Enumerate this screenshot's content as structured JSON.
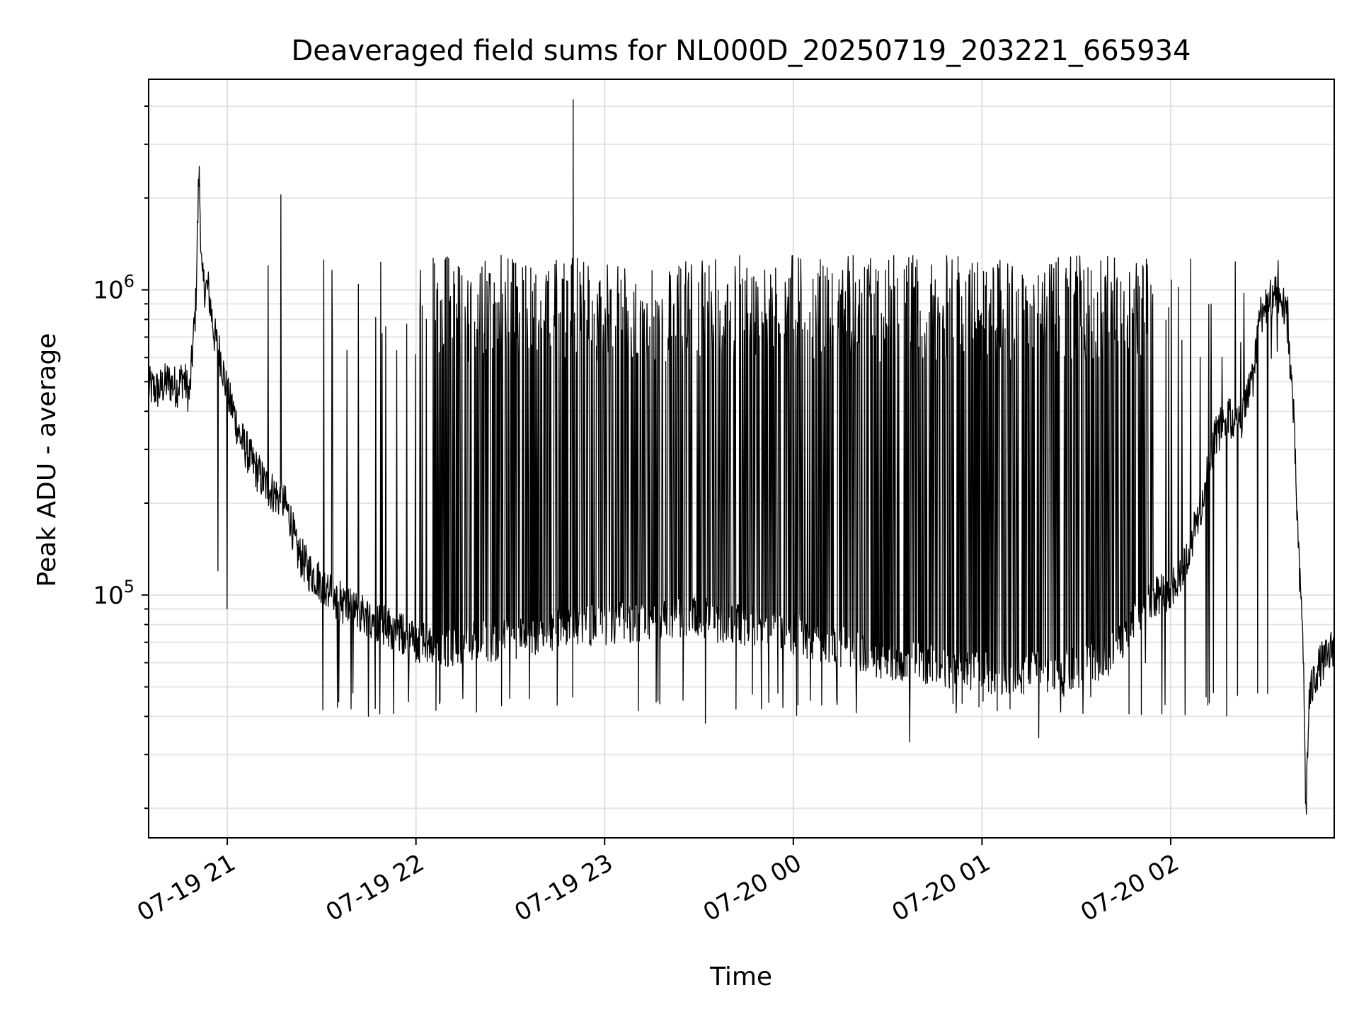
{
  "chart_data": {
    "type": "line",
    "title": "Deaveraged field sums for NL000D_20250719_203221_665934",
    "xlabel": "Time",
    "ylabel": "Peak ADU - average",
    "y_scale": "log",
    "ylim": [
      16000,
      4900000
    ],
    "xlim": [
      "2025-07-19 20:35",
      "2025-07-20 02:52"
    ],
    "x_ticks": [
      {
        "label": "07-19 21",
        "time": "2025-07-19 21:00"
      },
      {
        "label": "07-19 22",
        "time": "2025-07-19 22:00"
      },
      {
        "label": "07-19 23",
        "time": "2025-07-19 23:00"
      },
      {
        "label": "07-20 00",
        "time": "2025-07-20 00:00"
      },
      {
        "label": "07-20 01",
        "time": "2025-07-20 01:00"
      },
      {
        "label": "07-20 02",
        "time": "2025-07-20 02:00"
      }
    ],
    "y_ticks": [
      {
        "value": 100000,
        "base": "10",
        "exp": "5"
      },
      {
        "value": 1000000,
        "base": "10",
        "exp": "6"
      }
    ],
    "grid": true,
    "line_color": "#000000",
    "series": [
      {
        "points": [
          [
            "2025-07-19 20:35",
            480000
          ],
          [
            "2025-07-19 20:38",
            470000
          ],
          [
            "2025-07-19 20:41",
            500000
          ],
          [
            "2025-07-19 20:44",
            480000
          ],
          [
            "2025-07-19 20:46",
            520000
          ],
          [
            "2025-07-19 20:48",
            450000
          ],
          [
            "2025-07-19 20:50",
            900000
          ],
          [
            "2025-07-19 20:51",
            2500000
          ],
          [
            "2025-07-19 20:52",
            1050000
          ],
          [
            "2025-07-19 20:54",
            1000000
          ],
          [
            "2025-07-19 20:56",
            700000
          ],
          [
            "2025-07-19 20:58",
            600000
          ],
          [
            "2025-07-19 21:00",
            450000
          ],
          [
            "2025-07-19 21:02",
            400000
          ],
          [
            "2025-07-19 21:04",
            330000
          ],
          [
            "2025-07-19 21:06",
            300000
          ],
          [
            "2025-07-19 21:08",
            270000
          ],
          [
            "2025-07-19 21:10",
            250000
          ],
          [
            "2025-07-19 21:12",
            230000
          ],
          [
            "2025-07-19 21:14",
            220000
          ],
          [
            "2025-07-19 21:16",
            210000
          ],
          [
            "2025-07-19 21:18",
            200000
          ],
          [
            "2025-07-19 21:20",
            180000
          ],
          [
            "2025-07-19 21:22",
            140000
          ],
          [
            "2025-07-19 21:24",
            130000
          ],
          [
            "2025-07-19 21:26",
            120000
          ],
          [
            "2025-07-19 21:28",
            115000
          ],
          [
            "2025-07-19 21:30",
            110000
          ],
          [
            "2025-07-19 21:33",
            100000
          ],
          [
            "2025-07-19 21:36",
            95000
          ],
          [
            "2025-07-19 21:40",
            90000
          ],
          [
            "2025-07-19 21:45",
            85000
          ],
          [
            "2025-07-19 21:50",
            80000
          ],
          [
            "2025-07-19 21:55",
            75000
          ],
          [
            "2025-07-19 22:00",
            70000
          ],
          [
            "2025-07-19 22:10",
            68000
          ],
          [
            "2025-07-19 22:20",
            70000
          ],
          [
            "2025-07-19 22:30",
            72000
          ],
          [
            "2025-07-19 22:40",
            75000
          ],
          [
            "2025-07-19 22:50",
            80000
          ],
          [
            "2025-07-19 23:00",
            80000
          ],
          [
            "2025-07-19 23:10",
            82000
          ],
          [
            "2025-07-19 23:20",
            85000
          ],
          [
            "2025-07-19 23:30",
            85000
          ],
          [
            "2025-07-19 23:40",
            80000
          ],
          [
            "2025-07-19 23:50",
            78000
          ],
          [
            "2025-07-20 00:00",
            75000
          ],
          [
            "2025-07-20 00:10",
            70000
          ],
          [
            "2025-07-20 00:20",
            65000
          ],
          [
            "2025-07-20 00:30",
            62000
          ],
          [
            "2025-07-20 00:40",
            60000
          ],
          [
            "2025-07-20 00:50",
            58000
          ],
          [
            "2025-07-20 01:00",
            56000
          ],
          [
            "2025-07-20 01:10",
            55000
          ],
          [
            "2025-07-20 01:20",
            56000
          ],
          [
            "2025-07-20 01:30",
            58000
          ],
          [
            "2025-07-20 01:40",
            62000
          ],
          [
            "2025-07-20 01:45",
            70000
          ],
          [
            "2025-07-20 01:50",
            90000
          ],
          [
            "2025-07-20 01:55",
            100000
          ],
          [
            "2025-07-20 02:00",
            105000
          ],
          [
            "2025-07-20 02:05",
            130000
          ],
          [
            "2025-07-20 02:10",
            200000
          ],
          [
            "2025-07-20 02:14",
            330000
          ],
          [
            "2025-07-20 02:18",
            380000
          ],
          [
            "2025-07-20 02:22",
            360000
          ],
          [
            "2025-07-20 02:26",
            500000
          ],
          [
            "2025-07-20 02:28",
            800000
          ],
          [
            "2025-07-20 02:30",
            900000
          ],
          [
            "2025-07-20 02:34",
            950000
          ],
          [
            "2025-07-20 02:37",
            850000
          ],
          [
            "2025-07-20 02:39",
            400000
          ],
          [
            "2025-07-20 02:41",
            110000
          ],
          [
            "2025-07-20 02:42",
            80000
          ],
          [
            "2025-07-20 02:43",
            19000
          ],
          [
            "2025-07-20 02:44",
            45000
          ],
          [
            "2025-07-20 02:46",
            55000
          ],
          [
            "2025-07-20 02:48",
            60000
          ],
          [
            "2025-07-20 02:50",
            62000
          ],
          [
            "2025-07-20 02:52",
            70000
          ]
        ],
        "dense_band": {
          "from": "2025-07-19 21:30",
          "to": "2025-07-20 02:38",
          "low": 40000,
          "high": 1300000
        },
        "spikes": [
          [
            "2025-07-19 21:00",
            90000
          ],
          [
            "2025-07-19 20:57",
            120000
          ],
          [
            "2025-07-19 21:13",
            1200000
          ],
          [
            "2025-07-19 21:17",
            2050000
          ],
          [
            "2025-07-19 22:50",
            4200000
          ],
          [
            "2025-07-19 23:32",
            38000
          ],
          [
            "2025-07-20 00:37",
            33000
          ],
          [
            "2025-07-20 01:18",
            34000
          ],
          [
            "2025-07-20 01:52",
            60000
          ]
        ]
      }
    ]
  }
}
